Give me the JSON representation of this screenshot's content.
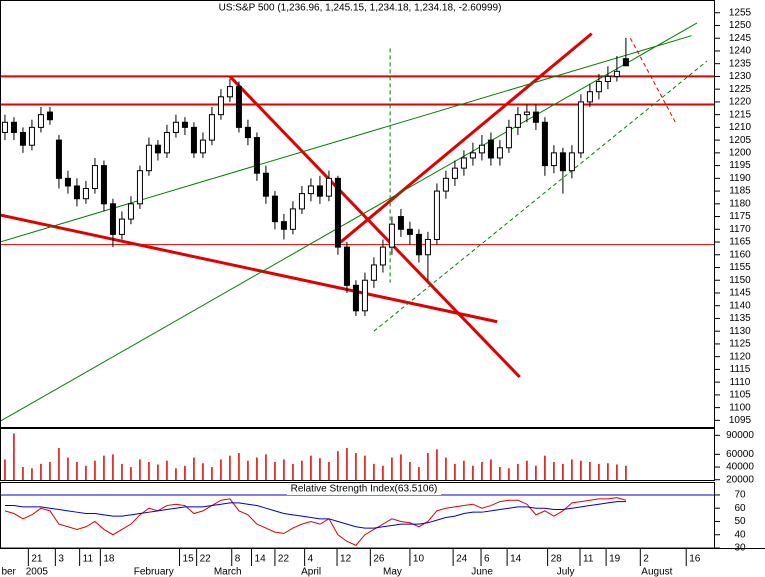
{
  "chart_data": [
    {
      "type": "candlestick",
      "title": "US:S&P 500 (1,236.96, 1,245.15, 1,234.18, 1,234.18, -2.60999)",
      "open": [
        1208,
        1212,
        1208,
        1203,
        1210,
        1216,
        1205,
        1190,
        1187,
        1182,
        1186,
        1195,
        1180,
        1168,
        1174,
        1180,
        1193,
        1203,
        1200,
        1208,
        1212,
        1210,
        1200,
        1205,
        1215,
        1222,
        1226,
        1210,
        1206,
        1192,
        1183,
        1173,
        1170,
        1178,
        1184,
        1187,
        1183,
        1190,
        1163,
        1148,
        1138,
        1150,
        1156,
        1163,
        1175,
        1170,
        1168,
        1160,
        1166,
        1185,
        1190,
        1194,
        1198,
        1200,
        1205,
        1198,
        1202,
        1210,
        1215,
        1216,
        1212,
        1195,
        1200,
        1193,
        1200,
        1220,
        1224,
        1228,
        1230,
        1236.96
      ],
      "high": [
        1215,
        1214,
        1210,
        1213,
        1218,
        1218,
        1207,
        1193,
        1190,
        1189,
        1198,
        1197,
        1182,
        1177,
        1183,
        1195,
        1206,
        1205,
        1211,
        1215,
        1214,
        1212,
        1208,
        1218,
        1225,
        1229,
        1228,
        1213,
        1208,
        1195,
        1185,
        1176,
        1181,
        1187,
        1190,
        1191,
        1193,
        1191,
        1165,
        1150,
        1153,
        1159,
        1166,
        1175,
        1178,
        1173,
        1170,
        1169,
        1188,
        1193,
        1197,
        1201,
        1204,
        1207,
        1208,
        1205,
        1213,
        1218,
        1219,
        1219,
        1214,
        1203,
        1202,
        1203,
        1223,
        1227,
        1231,
        1234,
        1238,
        1245.15
      ],
      "low": [
        1205,
        1205,
        1200,
        1201,
        1208,
        1211,
        1186,
        1184,
        1179,
        1180,
        1184,
        1177,
        1163,
        1166,
        1172,
        1178,
        1191,
        1197,
        1198,
        1206,
        1207,
        1198,
        1198,
        1203,
        1213,
        1220,
        1208,
        1203,
        1189,
        1180,
        1170,
        1166,
        1168,
        1176,
        1181,
        1180,
        1181,
        1160,
        1145,
        1136,
        1136,
        1147,
        1153,
        1160,
        1167,
        1164,
        1157,
        1150,
        1164,
        1182,
        1187,
        1191,
        1195,
        1197,
        1195,
        1195,
        1200,
        1207,
        1212,
        1209,
        1191,
        1192,
        1184,
        1190,
        1198,
        1218,
        1221,
        1225,
        1228,
        1234.18
      ],
      "close": [
        1212,
        1208,
        1203,
        1210,
        1215,
        1213,
        1190,
        1187,
        1182,
        1186,
        1195,
        1180,
        1168,
        1174,
        1180,
        1193,
        1203,
        1200,
        1208,
        1212,
        1210,
        1200,
        1205,
        1215,
        1222,
        1226,
        1210,
        1206,
        1192,
        1183,
        1173,
        1170,
        1178,
        1184,
        1187,
        1183,
        1190,
        1163,
        1148,
        1138,
        1150,
        1156,
        1163,
        1172,
        1170,
        1168,
        1160,
        1166,
        1185,
        1190,
        1194,
        1198,
        1200,
        1203,
        1198,
        1202,
        1210,
        1215,
        1216,
        1212,
        1195,
        1200,
        1193,
        1200,
        1220,
        1224,
        1228,
        1230,
        1232,
        1234.18
      ],
      "up_color": "#ffffff",
      "down_color": "#000000",
      "edge_color": "#000000",
      "xlim": [
        -0.55,
        78.9
      ],
      "xticks": [
        {
          "value": 2.6,
          "label": "21"
        },
        {
          "value": 5.6,
          "label": "3"
        },
        {
          "value": 8.3,
          "label": "11"
        },
        {
          "value": 10.6,
          "label": "18"
        },
        {
          "value": 19.4,
          "label": "15"
        },
        {
          "value": 21.3,
          "label": "22"
        },
        {
          "value": 25.2,
          "label": "8"
        },
        {
          "value": 27.4,
          "label": "14"
        },
        {
          "value": 30,
          "label": "22"
        },
        {
          "value": 33.3,
          "label": "4"
        },
        {
          "value": 36.9,
          "label": "12"
        },
        {
          "value": 40.6,
          "label": "26"
        },
        {
          "value": 45,
          "label": "10"
        },
        {
          "value": 49.8,
          "label": "24"
        },
        {
          "value": 52.9,
          "label": "6"
        },
        {
          "value": 55.8,
          "label": "14"
        },
        {
          "value": 60.3,
          "label": "28"
        },
        {
          "value": 63.9,
          "label": "11"
        },
        {
          "value": 66.8,
          "label": "19"
        },
        {
          "value": 70.6,
          "label": "2"
        },
        {
          "value": 75.7,
          "label": "16"
        }
      ],
      "month_labels": [
        {
          "value": -0.5,
          "label": "ber"
        },
        {
          "value": 2.2,
          "label": "2005"
        },
        {
          "value": 14.2,
          "label": "February"
        },
        {
          "value": 23.1,
          "label": "March"
        },
        {
          "value": 32.8,
          "label": "April"
        },
        {
          "value": 41.9,
          "label": "May"
        },
        {
          "value": 51.7,
          "label": "June"
        },
        {
          "value": 61.2,
          "label": "July"
        },
        {
          "value": 70.6,
          "label": "August"
        }
      ],
      "ylim": [
        1092,
        1260
      ],
      "yticks": [
        1255,
        1250,
        1245,
        1240,
        1235,
        1230,
        1225,
        1220,
        1215,
        1210,
        1205,
        1200,
        1195,
        1190,
        1185,
        1180,
        1175,
        1170,
        1165,
        1160,
        1155,
        1150,
        1145,
        1140,
        1135,
        1130,
        1125,
        1120,
        1115,
        1110,
        1105,
        1100,
        1095
      ],
      "hlines": [
        {
          "value": 1230,
          "color": "#e00000",
          "width": 2
        },
        {
          "value": 1219,
          "color": "#e00000",
          "width": 2
        },
        {
          "value": 1164,
          "color": "#e00000",
          "width": 1
        }
      ],
      "trendlines": [
        {
          "x": [
            25,
            57.2
          ],
          "y": [
            1230,
            1112
          ],
          "color": "#e00000",
          "width": 3,
          "dashed": false
        },
        {
          "x": [
            -0.55,
            54.7
          ],
          "y": [
            1175.6,
            1133.7
          ],
          "color": "#e00000",
          "width": 3,
          "dashed": false
        },
        {
          "x": [
            36.9,
            65.2
          ],
          "y": [
            1163.8,
            1246.8
          ],
          "color": "#e00000",
          "width": 3,
          "dashed": false
        },
        {
          "x": [
            -0.55,
            76.9
          ],
          "y": [
            1094.6,
            1251
          ],
          "color": "#008000",
          "width": 1,
          "dashed": false
        },
        {
          "x": [
            -0.55,
            76.3
          ],
          "y": [
            1165,
            1246
          ],
          "color": "#008000",
          "width": 1,
          "dashed": false
        },
        {
          "x": [
            41,
            78
          ],
          "y": [
            1130,
            1236
          ],
          "color": "#008000",
          "width": 1,
          "dashed": true
        },
        {
          "x": [
            42.8,
            42.8
          ],
          "y": [
            1241,
            1149
          ],
          "color": "#008000",
          "width": 1,
          "dashed": true
        },
        {
          "x": [
            69.5,
            74.5
          ],
          "y": [
            1245,
            1212
          ],
          "color": "#e00000",
          "width": 1,
          "dashed": true
        }
      ]
    },
    {
      "type": "bar",
      "values": [
        52000,
        93000,
        40000,
        38000,
        45000,
        48000,
        70000,
        55000,
        48000,
        42000,
        50000,
        58000,
        60000,
        45000,
        40000,
        52000,
        48000,
        44000,
        50000,
        38000,
        42000,
        55000,
        46000,
        40000,
        52000,
        58000,
        62000,
        50000,
        55000,
        60000,
        48000,
        52000,
        45000,
        50000,
        58000,
        54000,
        48000,
        65000,
        70000,
        62000,
        58000,
        45000,
        42000,
        55000,
        60000,
        48000,
        40000,
        62000,
        68000,
        55000,
        45000,
        50000,
        42000,
        48000,
        52000,
        40000,
        38000,
        45000,
        50000,
        42000,
        58000,
        48000,
        45000,
        52000,
        50000,
        48000,
        45000,
        46000,
        44000,
        42000
      ],
      "color": "#e00000",
      "ylim": [
        18000,
        100000
      ],
      "yticks": [
        90000,
        60000,
        40000,
        20000
      ]
    },
    {
      "type": "line",
      "title": "Relative Strength Index(63.5106)",
      "series": [
        {
          "color": "#e00000",
          "values": [
            58,
            56,
            52,
            55,
            60,
            58,
            48,
            46,
            44,
            46,
            50,
            44,
            40,
            44,
            48,
            55,
            60,
            58,
            62,
            63,
            62,
            56,
            58,
            62,
            66,
            67,
            58,
            55,
            48,
            45,
            42,
            41,
            45,
            48,
            50,
            48,
            52,
            40,
            35,
            32,
            40,
            44,
            48,
            52,
            50,
            49,
            46,
            50,
            58,
            60,
            61,
            62,
            63,
            60,
            62,
            65,
            66,
            66,
            63,
            55,
            58,
            54,
            58,
            64,
            65,
            66,
            67,
            67,
            68,
            66
          ]
        },
        {
          "color": "#0000cc",
          "values": [
            62,
            62,
            61,
            61,
            61,
            60,
            59,
            58,
            57,
            56,
            56,
            55,
            54,
            54,
            55,
            56,
            57,
            58,
            59,
            60,
            61,
            61,
            61,
            62,
            63,
            64,
            64,
            63,
            62,
            60,
            58,
            56,
            55,
            54,
            53,
            52,
            52,
            50,
            48,
            46,
            45,
            45,
            46,
            47,
            48,
            48,
            48,
            49,
            51,
            53,
            54,
            56,
            57,
            57,
            58,
            59,
            60,
            61,
            61,
            60,
            60,
            59,
            59,
            60,
            61,
            62,
            63,
            64,
            65,
            65
          ]
        }
      ],
      "ylim": [
        30,
        79
      ],
      "yticks": [
        70,
        60,
        50,
        40,
        30
      ],
      "hlines": [
        70,
        30
      ]
    }
  ]
}
